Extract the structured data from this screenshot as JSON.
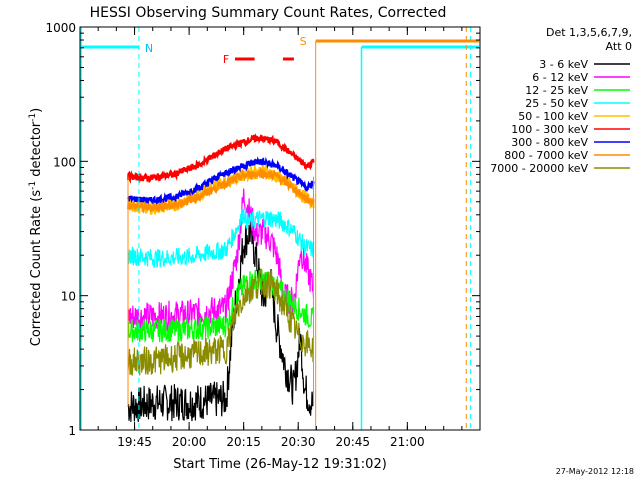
{
  "chart_data": {
    "type": "line",
    "title": "HESSI Observing Summary Count Rates, Corrected",
    "xlabel": "Start Time (26-May-12 19:31:02)",
    "ylabel_main": "Corrected Count Rate (s",
    "ylabel_sup1": "-1",
    "ylabel_mid": " detector",
    "ylabel_sup2": "-1",
    "ylabel_end": ")",
    "yscale": "log",
    "ylim": [
      1,
      1000
    ],
    "xlim_minutes": [
      19.5,
      21.333
    ],
    "x_ticks": [
      {
        "label": "19:45",
        "h": 19.75
      },
      {
        "label": "20:00",
        "h": 20.0
      },
      {
        "label": "20:15",
        "h": 20.25
      },
      {
        "label": "20:30",
        "h": 20.5
      },
      {
        "label": "20:45",
        "h": 20.75
      },
      {
        "label": "21:00",
        "h": 21.0
      }
    ],
    "y_ticks": [
      {
        "label": "1",
        "v": 1
      },
      {
        "label": "10",
        "v": 10
      },
      {
        "label": "100",
        "v": 100
      },
      {
        "label": "1000",
        "v": 1000
      }
    ],
    "legend_header": [
      "Det 1,3,5,6,7,9,",
      "Att 0"
    ],
    "series": [
      {
        "name": "3 - 6 keV",
        "color": "#000000",
        "points": [
          [
            19.72,
            1.5
          ],
          [
            19.85,
            1.6
          ],
          [
            20.0,
            1.6
          ],
          [
            20.17,
            1.7
          ],
          [
            20.2,
            6
          ],
          [
            20.25,
            25
          ],
          [
            20.28,
            30
          ],
          [
            20.31,
            18
          ],
          [
            20.34,
            9
          ],
          [
            20.37,
            14
          ],
          [
            20.4,
            6
          ],
          [
            20.44,
            3
          ],
          [
            20.48,
            2
          ],
          [
            20.51,
            5
          ],
          [
            20.53,
            2
          ],
          [
            20.57,
            1.5
          ]
        ]
      },
      {
        "name": "6 - 12 keV",
        "color": "#ff00ff",
        "points": [
          [
            19.72,
            7
          ],
          [
            19.85,
            7
          ],
          [
            20.0,
            7.3
          ],
          [
            20.17,
            8
          ],
          [
            20.22,
            20
          ],
          [
            20.25,
            55
          ],
          [
            20.28,
            40
          ],
          [
            20.31,
            28
          ],
          [
            20.34,
            30
          ],
          [
            20.38,
            25
          ],
          [
            20.41,
            18
          ],
          [
            20.43,
            10
          ],
          [
            20.48,
            9
          ],
          [
            20.51,
            22
          ],
          [
            20.54,
            16
          ],
          [
            20.57,
            11
          ]
        ]
      },
      {
        "name": "12 - 25 keV",
        "color": "#00ff00",
        "points": [
          [
            19.72,
            5.5
          ],
          [
            19.85,
            5.5
          ],
          [
            20.0,
            5.6
          ],
          [
            20.17,
            6
          ],
          [
            20.22,
            10
          ],
          [
            20.27,
            13
          ],
          [
            20.33,
            13
          ],
          [
            20.38,
            12.5
          ],
          [
            20.44,
            10
          ],
          [
            20.5,
            8
          ],
          [
            20.57,
            6.5
          ]
        ]
      },
      {
        "name": "25 - 50 keV",
        "color": "#00ffff",
        "points": [
          [
            19.72,
            20
          ],
          [
            19.85,
            19
          ],
          [
            20.0,
            19.5
          ],
          [
            20.17,
            22
          ],
          [
            20.22,
            32
          ],
          [
            20.25,
            42
          ],
          [
            20.27,
            35
          ],
          [
            20.31,
            37
          ],
          [
            20.36,
            38
          ],
          [
            20.42,
            36
          ],
          [
            20.48,
            30
          ],
          [
            20.53,
            23
          ],
          [
            20.57,
            22
          ]
        ]
      },
      {
        "name": "50 - 100 keV",
        "color": "#ffbf00",
        "points": [
          [
            19.72,
            47
          ],
          [
            19.82,
            45
          ],
          [
            19.93,
            47
          ],
          [
            20.05,
            58
          ],
          [
            20.15,
            70
          ],
          [
            20.25,
            80
          ],
          [
            20.35,
            85
          ],
          [
            20.45,
            70
          ],
          [
            20.52,
            55
          ],
          [
            20.57,
            50
          ]
        ]
      },
      {
        "name": "100 - 300 keV",
        "color": "#ff0000",
        "points": [
          [
            19.72,
            77
          ],
          [
            19.82,
            75
          ],
          [
            19.93,
            80
          ],
          [
            20.05,
            95
          ],
          [
            20.15,
            120
          ],
          [
            20.25,
            140
          ],
          [
            20.32,
            150
          ],
          [
            20.4,
            140
          ],
          [
            20.48,
            110
          ],
          [
            20.54,
            92
          ],
          [
            20.57,
            100
          ]
        ]
      },
      {
        "name": "300 - 800 keV",
        "color": "#0000ff",
        "points": [
          [
            19.72,
            53
          ],
          [
            19.82,
            51
          ],
          [
            19.93,
            54
          ],
          [
            20.05,
            64
          ],
          [
            20.15,
            80
          ],
          [
            20.25,
            93
          ],
          [
            20.32,
            100
          ],
          [
            20.4,
            93
          ],
          [
            20.48,
            75
          ],
          [
            20.54,
            63
          ],
          [
            20.57,
            70
          ]
        ]
      },
      {
        "name": "800 - 7000 keV",
        "color": "#ff8c00",
        "points": [
          [
            19.72,
            47
          ],
          [
            19.82,
            45
          ],
          [
            19.93,
            47
          ],
          [
            20.05,
            55
          ],
          [
            20.15,
            67
          ],
          [
            20.25,
            78
          ],
          [
            20.32,
            82
          ],
          [
            20.4,
            78
          ],
          [
            20.48,
            63
          ],
          [
            20.54,
            52
          ],
          [
            20.57,
            50
          ]
        ]
      },
      {
        "name": "7000 - 20000 keV",
        "color": "#8b8b00",
        "points": [
          [
            19.72,
            3.2
          ],
          [
            19.85,
            3.3
          ],
          [
            20.0,
            3.6
          ],
          [
            20.17,
            4
          ],
          [
            20.22,
            8
          ],
          [
            20.27,
            11
          ],
          [
            20.33,
            12.5
          ],
          [
            20.38,
            12
          ],
          [
            20.44,
            8
          ],
          [
            20.5,
            5
          ],
          [
            20.57,
            4
          ]
        ]
      }
    ],
    "annotations": [
      {
        "text": "N",
        "color": "#00bfff"
      },
      {
        "text": "F",
        "color": "#ff0000"
      },
      {
        "text": "S",
        "color": "#ff8c00"
      }
    ],
    "footer_date": "27-May-2012 12:18"
  }
}
